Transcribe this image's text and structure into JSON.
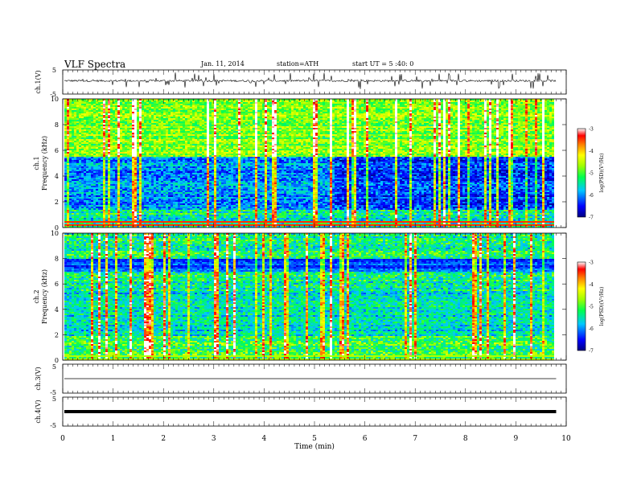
{
  "header": {
    "title": "VLF  Spectra",
    "date": "Jan. 11, 2014",
    "station": "station=ATH",
    "start": "start  UT  =   5 :40: 0"
  },
  "chart_data": [
    {
      "type": "line",
      "panel": "ch1-waveform",
      "ylabel": "ch.1(V)",
      "ylim": [
        -5,
        5
      ],
      "ytick_labels": [
        "5",
        "-5"
      ],
      "baseline_value": 0.5,
      "spike_range": [
        -3.5,
        3.5
      ]
    },
    {
      "type": "heatmap",
      "panel": "ch1-spectrogram",
      "ylabel_line1": "ch.1",
      "ylabel_line2": "Frequency (kHz)",
      "ylim": [
        0,
        10
      ],
      "ytick_labels": [
        "0",
        "2",
        "4",
        "6",
        "8",
        "10"
      ],
      "colorbar": {
        "label": "log(PSD)(V²/Hz)",
        "range": [
          -7,
          -3
        ],
        "tick_labels": [
          "-3",
          "-4",
          "-5",
          "-6",
          "-7"
        ]
      }
    },
    {
      "type": "heatmap",
      "panel": "ch2-spectrogram",
      "ylabel_line1": "ch.2",
      "ylabel_line2": "Frequency (kHz)",
      "ylim": [
        0,
        10
      ],
      "ytick_labels": [
        "0",
        "2",
        "4",
        "6",
        "8",
        "10"
      ],
      "colorbar": {
        "label": "log(PSD)(V²/Hz)",
        "range": [
          -7,
          -3
        ],
        "tick_labels": [
          "-3",
          "-4",
          "-5",
          "-6",
          "-7"
        ]
      }
    },
    {
      "type": "line",
      "panel": "ch3-waveform",
      "ylabel": "ch.3(V)",
      "ylim": [
        -5,
        5
      ],
      "ytick_labels": [
        "5",
        "-5"
      ],
      "baseline_value": 0
    },
    {
      "type": "line",
      "panel": "ch4-waveform",
      "ylabel": "ch.4(V)",
      "ylim": [
        -5,
        5
      ],
      "ytick_labels": [
        "5",
        "-5"
      ],
      "baseline_value": 0
    }
  ],
  "x_axis": {
    "label": "Time  (min)",
    "range": [
      0,
      10
    ],
    "data_end": 9.8,
    "tick_labels": [
      "0",
      "1",
      "2",
      "3",
      "4",
      "5",
      "6",
      "7",
      "8",
      "9",
      "10"
    ]
  }
}
